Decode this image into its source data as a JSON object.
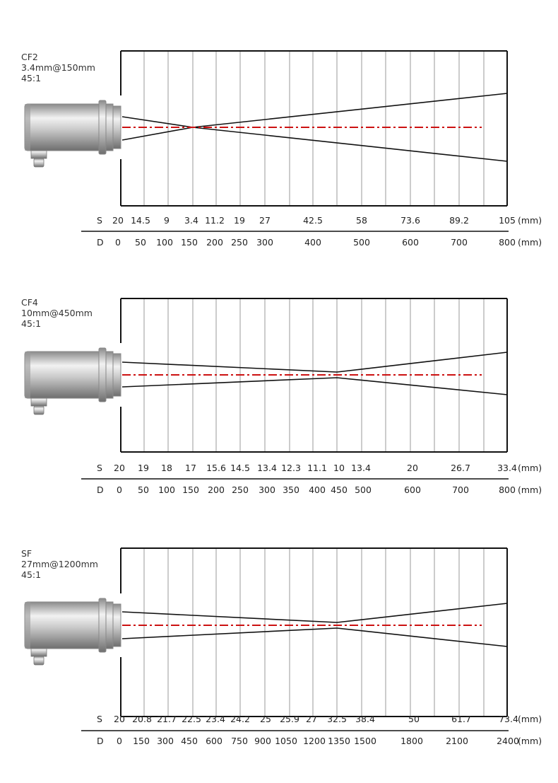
{
  "colors": {
    "optical_axis": "#cc1111",
    "frame": "#111111",
    "grid": "#9a9a9a",
    "beam": "#111111"
  },
  "panels": [
    {
      "model": "CF2",
      "spot_spec": "3.4mm@150mm",
      "ratio": "45:1",
      "row_s": {
        "letter": "S",
        "values": [
          "20",
          "14.5",
          "9",
          "3.4",
          "11.2",
          "19",
          "27",
          "42.5",
          "58",
          "73.6",
          "89.2",
          "105"
        ],
        "unit": "(mm)"
      },
      "row_d": {
        "letter": "D",
        "values": [
          "0",
          "50",
          "100",
          "150",
          "200",
          "250",
          "300",
          "400",
          "500",
          "600",
          "700",
          "800"
        ],
        "unit": "(mm)"
      }
    },
    {
      "model": "CF4",
      "spot_spec": "10mm@450mm",
      "ratio": "45:1",
      "row_s": {
        "letter": "S",
        "values": [
          "20",
          "19",
          "18",
          "17",
          "15.6",
          "14.5",
          "13.4",
          "12.3",
          "11.1",
          "10",
          "13.4",
          "20",
          "26.7",
          "33.4"
        ],
        "unit": "(mm)"
      },
      "row_d": {
        "letter": "D",
        "values": [
          "0",
          "50",
          "100",
          "150",
          "200",
          "250",
          "300",
          "350",
          "400",
          "450",
          "500",
          "600",
          "700",
          "800"
        ],
        "unit": "(mm)"
      }
    },
    {
      "model": "SF",
      "spot_spec": "27mm@1200mm",
      "ratio": "45:1",
      "row_s": {
        "letter": "S",
        "values": [
          "20",
          "20.8",
          "21.7",
          "22.5",
          "23.4",
          "24.2",
          "25",
          "25.9",
          "27",
          "32.5",
          "38.4",
          "50",
          "61.7",
          "73.4"
        ],
        "unit": "(mm)"
      },
      "row_d": {
        "letter": "D",
        "values": [
          "0",
          "150",
          "300",
          "450",
          "600",
          "750",
          "900",
          "1050",
          "1200",
          "1350",
          "1500",
          "1800",
          "2100",
          "2400"
        ],
        "unit": "(mm)"
      }
    }
  ]
}
